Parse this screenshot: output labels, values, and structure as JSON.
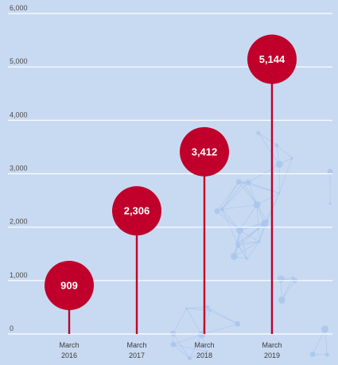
{
  "chart_data": {
    "type": "lollipop",
    "categories": [
      {
        "line1": "March",
        "line2": "2016"
      },
      {
        "line1": "March",
        "line2": "2017"
      },
      {
        "line1": "March",
        "line2": "2018"
      },
      {
        "line1": "March",
        "line2": "2019"
      }
    ],
    "values": [
      909,
      2306,
      3412,
      5144
    ],
    "value_labels": [
      "909",
      "2,306",
      "3,412",
      "5,144"
    ],
    "y_ticks": [
      {
        "value": 0,
        "label": "0"
      },
      {
        "value": 1000,
        "label": "1,000"
      },
      {
        "value": 2000,
        "label": "2,000"
      },
      {
        "value": 3000,
        "label": "3,000"
      },
      {
        "value": 4000,
        "label": "4,000"
      },
      {
        "value": 5000,
        "label": "5,000"
      },
      {
        "value": 6000,
        "label": "6,000"
      }
    ],
    "ylim": [
      0,
      6000
    ],
    "grid": true,
    "colors": {
      "background": "#c8daf2",
      "marker": "#c0002a",
      "gridline": "#ffffff",
      "network": "#a9c6ec"
    }
  }
}
